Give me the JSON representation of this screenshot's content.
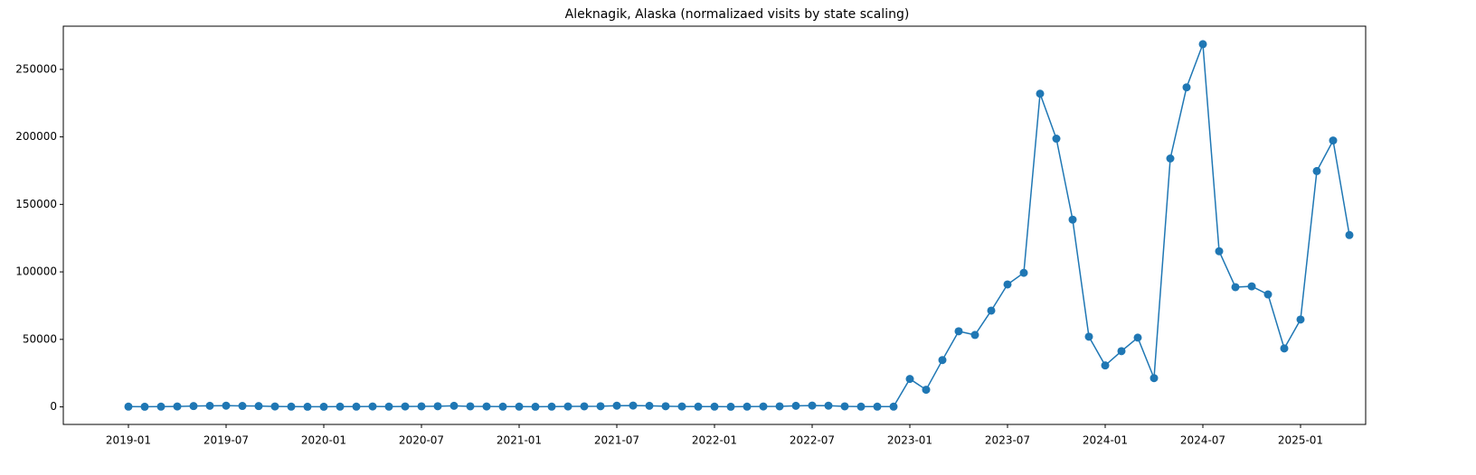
{
  "chart_data": {
    "type": "line",
    "title": "Aleknagik, Alaska (normalizaed visits by state scaling)",
    "x": [
      "2019-01",
      "2019-02",
      "2019-03",
      "2019-04",
      "2019-05",
      "2019-06",
      "2019-07",
      "2019-08",
      "2019-09",
      "2019-10",
      "2019-11",
      "2019-12",
      "2020-01",
      "2020-02",
      "2020-03",
      "2020-04",
      "2020-05",
      "2020-06",
      "2020-07",
      "2020-08",
      "2020-09",
      "2020-10",
      "2020-11",
      "2020-12",
      "2021-01",
      "2021-02",
      "2021-03",
      "2021-04",
      "2021-05",
      "2021-06",
      "2021-07",
      "2021-08",
      "2021-09",
      "2021-10",
      "2021-11",
      "2021-12",
      "2022-01",
      "2022-02",
      "2022-03",
      "2022-04",
      "2022-05",
      "2022-06",
      "2022-07",
      "2022-08",
      "2022-09",
      "2022-10",
      "2022-11",
      "2022-12",
      "2023-01",
      "2023-02",
      "2023-03",
      "2023-04",
      "2023-05",
      "2023-06",
      "2023-07",
      "2023-08",
      "2023-09",
      "2023-10",
      "2023-11",
      "2023-12",
      "2024-01",
      "2024-02",
      "2024-03",
      "2024-04",
      "2024-05",
      "2024-06",
      "2024-07",
      "2024-08",
      "2024-09",
      "2024-10",
      "2024-11",
      "2024-12",
      "2025-01",
      "2025-02",
      "2025-03",
      "2025-04"
    ],
    "series": [
      {
        "name": "visits",
        "color": "#1f77b4",
        "values": [
          200,
          100,
          200,
          300,
          600,
          800,
          900,
          700,
          600,
          300,
          200,
          100,
          100,
          200,
          200,
          300,
          200,
          300,
          400,
          500,
          800,
          400,
          300,
          200,
          200,
          100,
          200,
          300,
          400,
          500,
          900,
          1000,
          800,
          500,
          300,
          200,
          200,
          100,
          200,
          300,
          400,
          800,
          1000,
          900,
          400,
          200,
          200,
          200,
          20700,
          12700,
          34700,
          56000,
          53300,
          71300,
          90700,
          99300,
          232000,
          198700,
          138700,
          52000,
          30700,
          41300,
          51300,
          21300,
          184000,
          236700,
          268700,
          115300,
          88700,
          89300,
          83300,
          43300,
          64700,
          174700,
          197300,
          127300
        ]
      }
    ],
    "xlim": [
      "2018-09",
      "2025-05"
    ],
    "xticks": [
      "2019-01",
      "2019-07",
      "2020-01",
      "2020-07",
      "2021-01",
      "2021-07",
      "2022-01",
      "2022-07",
      "2023-01",
      "2023-07",
      "2024-01",
      "2024-07",
      "2025-01"
    ],
    "ylim": [
      -13000,
      282000
    ],
    "yticks": [
      0,
      50000,
      100000,
      150000,
      200000,
      250000
    ]
  }
}
